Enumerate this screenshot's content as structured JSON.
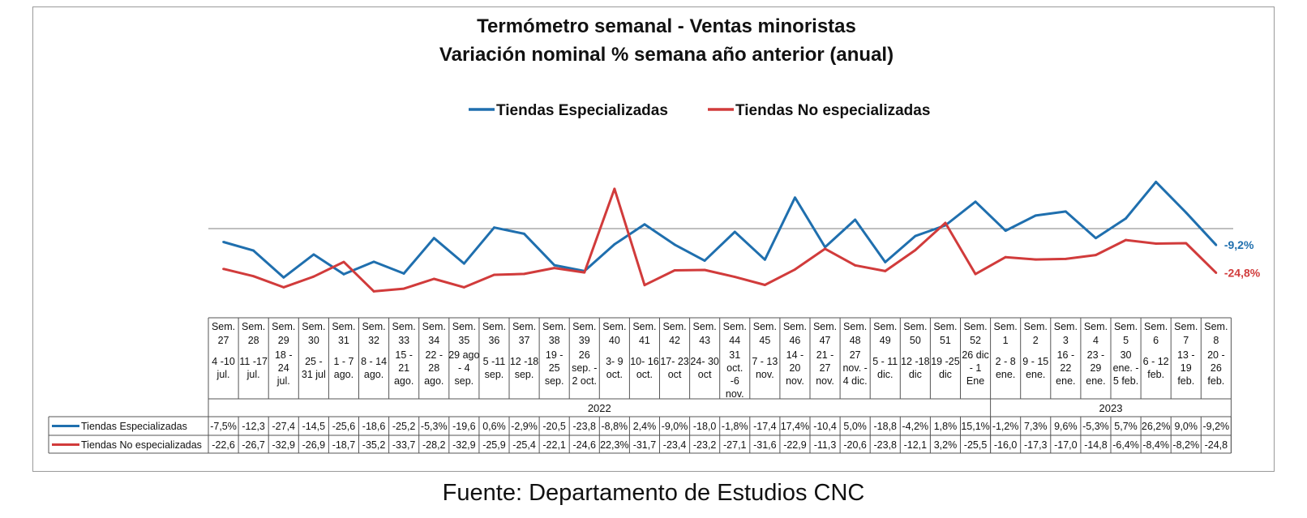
{
  "chart_data": {
    "type": "line",
    "title": "Termómetro semanal - Ventas minoristas",
    "subtitle": "Variación nominal % semana año anterior (anual)",
    "legend_position": "top-center",
    "weeks": [
      "Sem. 27",
      "Sem. 28",
      "Sem. 29",
      "Sem. 30",
      "Sem. 31",
      "Sem. 32",
      "Sem. 33",
      "Sem. 34",
      "Sem. 35",
      "Sem. 36",
      "Sem. 37",
      "Sem. 38",
      "Sem. 39",
      "Sem. 40",
      "Sem. 41",
      "Sem. 42",
      "Sem. 43",
      "Sem. 44",
      "Sem. 45",
      "Sem. 46",
      "Sem. 47",
      "Sem. 48",
      "Sem. 49",
      "Sem. 50",
      "Sem. 51",
      "Sem. 52",
      "Sem. 1",
      "Sem. 2",
      "Sem. 3",
      "Sem. 4",
      "Sem. 5",
      "Sem. 6",
      "Sem. 7",
      "Sem. 8"
    ],
    "dates": [
      "4 -10 jul.",
      "11 -17 jul.",
      "18 - 24 jul.",
      "25 - 31 jul",
      "1 - 7 ago.",
      "8 - 14 ago.",
      "15 - 21 ago.",
      "22 - 28 ago.",
      "29 ago - 4 sep.",
      "5 -11 sep.",
      "12 -18 sep.",
      "19 - 25 sep.",
      "26 sep. - 2 oct.",
      "3- 9 oct.",
      "10- 16 oct.",
      "17- 23 oct",
      "24- 30 oct",
      "31 oct. -6 nov.",
      "7 - 13 nov.",
      "14 - 20 nov.",
      "21 - 27 nov.",
      "27 nov. - 4 dic.",
      "5 - 11 dic.",
      "12 -18 dic",
      "19 -25 dic",
      "26 dic - 1 Ene",
      "2 - 8 ene.",
      "9 - 15 ene.",
      "16 - 22 ene.",
      "23 - 29 ene.",
      "30 ene. - 5 feb.",
      "6 - 12 feb.",
      "13 - 19 feb.",
      "20 - 26 feb."
    ],
    "years": [
      {
        "label": "2022",
        "first_index": 0,
        "last_index": 25
      },
      {
        "label": "2023",
        "first_index": 26,
        "last_index": 33
      }
    ],
    "series": [
      {
        "name": "Tiendas Especializadas",
        "color": "#1f6fae",
        "values": [
          -7.5,
          -12.3,
          -27.4,
          -14.5,
          -25.6,
          -18.6,
          -25.2,
          -5.3,
          -19.6,
          0.6,
          -2.9,
          -20.5,
          -23.8,
          -8.8,
          2.4,
          -9.0,
          -18.0,
          -1.8,
          -17.4,
          17.4,
          -10.4,
          5.0,
          -18.8,
          -4.2,
          1.8,
          15.1,
          -1.2,
          7.3,
          9.6,
          -5.3,
          5.7,
          26.2,
          9.0,
          -9.2
        ],
        "table_values": [
          "-7,5%",
          "-12,3",
          "-27,4",
          "-14,5",
          "-25,6",
          "-18,6",
          "-25,2",
          "-5,3%",
          "-19,6",
          "0,6%",
          "-2,9%",
          "-20,5",
          "-23,8",
          "-8,8%",
          "2,4%",
          "-9,0%",
          "-18,0",
          "-1,8%",
          "-17,4",
          "17,4%",
          "-10,4",
          "5,0%",
          "-18,8",
          "-4,2%",
          "1,8%",
          "15,1%",
          "-1,2%",
          "7,3%",
          "9,6%",
          "-5,3%",
          "5,7%",
          "26,2%",
          "9,0%",
          "-9,2%"
        ],
        "end_label": "-9,2%"
      },
      {
        "name": "Tiendas No especializadas",
        "color": "#d13b3b",
        "values": [
          -22.6,
          -26.7,
          -32.9,
          -26.9,
          -18.7,
          -35.2,
          -33.7,
          -28.2,
          -32.9,
          -25.9,
          -25.4,
          -22.1,
          -24.6,
          22.3,
          -31.7,
          -23.4,
          -23.2,
          -27.1,
          -31.6,
          -22.9,
          -11.3,
          -20.6,
          -23.8,
          -12.1,
          3.2,
          -25.5,
          -16.0,
          -17.3,
          -17.0,
          -14.8,
          -6.4,
          -8.4,
          -8.2,
          -24.8
        ],
        "table_values": [
          "-22,6",
          "-26,7",
          "-32,9",
          "-26,9",
          "-18,7",
          "-35,2",
          "-33,7",
          "-28,2",
          "-32,9",
          "-25,9",
          "-25,4",
          "-22,1",
          "-24,6",
          "22,3%",
          "-31,7",
          "-23,4",
          "-23,2",
          "-27,1",
          "-31,6",
          "-22,9",
          "-11,3",
          "-20,6",
          "-23,8",
          "-12,1",
          "3,2%",
          "-25,5",
          "-16,0",
          "-17,3",
          "-17,0",
          "-14,8",
          "-6,4%",
          "-8,4%",
          "-8,2%",
          "-24,8"
        ],
        "end_label": "-24,8%"
      }
    ],
    "ylim": [
      -40,
      30
    ],
    "zero_line": true,
    "source": "Fuente: Departamento de Estudios CNC"
  }
}
